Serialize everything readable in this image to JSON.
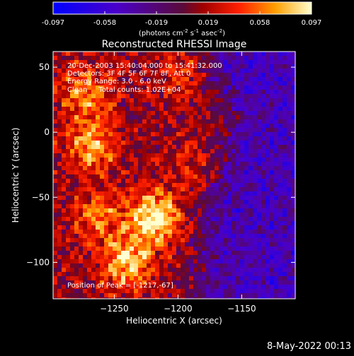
{
  "chart_data": {
    "type": "heatmap",
    "title": "Reconstructed RHESSI Image",
    "xlabel": "Heliocentric X (arcsec)",
    "ylabel": "Heliocentric Y (arcsec)",
    "xlim": [
      -1298,
      -1108
    ],
    "ylim": [
      -128,
      62
    ],
    "xticks": [
      -1250,
      -1200,
      -1150
    ],
    "yticks": [
      50,
      0,
      -50,
      -100
    ],
    "colorbar": {
      "ticks": [
        "-0.097",
        "-0.058",
        "-0.019",
        "0.019",
        "0.058",
        "0.097"
      ],
      "range": [
        -0.097,
        0.097
      ],
      "label": "(photons cm",
      "label_sup1": "-2",
      "label_mid1": " s",
      "label_sup2": "-1",
      "label_mid2": " asec",
      "label_sup3": "-2",
      "label_end": ")"
    },
    "annotations": [
      "20-Dec-2003 15:40:04.000 to 15:41:32.000",
      "Detectors: 3F 4F 5F 6F 7F 8F, Att 0",
      "Energy Range: 3.0 - 6.0 keV",
      "Clean     Total counts: 1.02E+04"
    ],
    "peak_label": "Position of Peak = [-1217,-67]",
    "peak": [
      -1217,
      -67
    ],
    "sources": [
      {
        "x": -1218,
        "y": -65,
        "amp": 0.09
      },
      {
        "x": -1240,
        "y": -100,
        "amp": 0.072
      },
      {
        "x": -1268,
        "y": -10,
        "amp": 0.06
      },
      {
        "x": -1272,
        "y": 30,
        "amp": 0.05
      },
      {
        "x": -1180,
        "y": -25,
        "amp": 0.04
      },
      {
        "x": -1170,
        "y": 12,
        "amp": 0.04
      },
      {
        "x": -1262,
        "y": -62,
        "amp": 0.045
      },
      {
        "x": -1195,
        "y": 45,
        "amp": 0.035
      }
    ],
    "background": {
      "left_level": 0.012,
      "right_level": -0.045,
      "transition_x": -1180
    }
  },
  "timestamp": "8-May-2022 00:13"
}
